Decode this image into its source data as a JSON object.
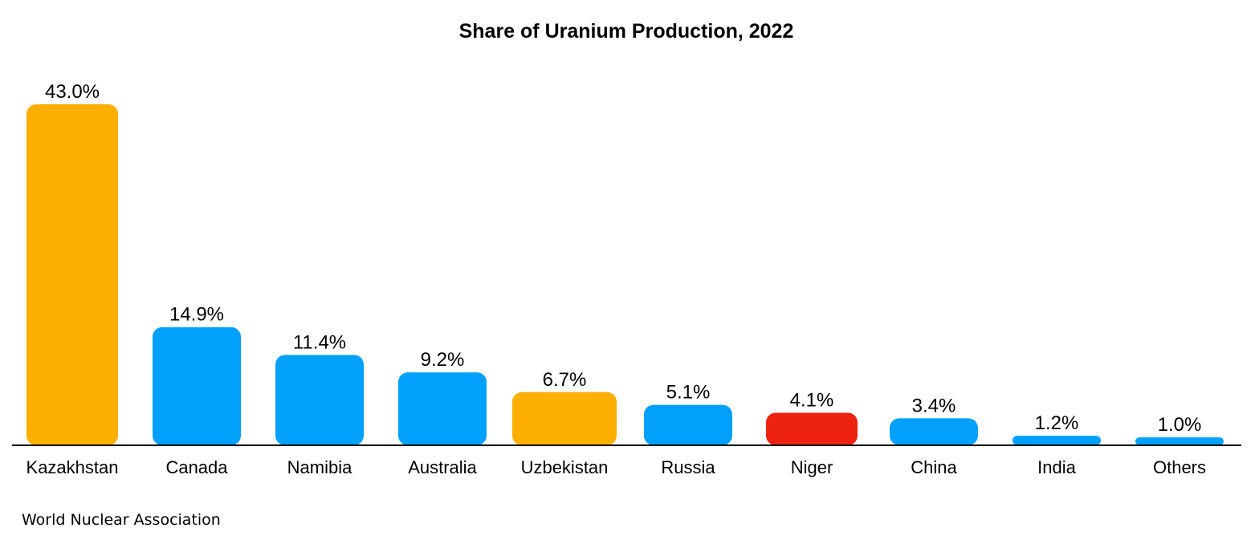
{
  "chart_data": {
    "type": "bar",
    "title": "Share of Uranium Production, 2022",
    "xlabel": "",
    "ylabel": "",
    "ylim": [
      0,
      43.0
    ],
    "grid": false,
    "legend": "none",
    "categories": [
      "Kazakhstan",
      "Canada",
      "Namibia",
      "Australia",
      "Uzbekistan",
      "Russia",
      "Niger",
      "China",
      "India",
      "Others"
    ],
    "values": [
      43.0,
      14.9,
      11.4,
      9.2,
      6.7,
      5.1,
      4.1,
      3.4,
      1.2,
      1.0
    ],
    "value_labels": [
      "43.0%",
      "14.9%",
      "11.4%",
      "9.2%",
      "6.7%",
      "5.1%",
      "4.1%",
      "3.4%",
      "1.2%",
      "1.0%"
    ],
    "bar_colors": [
      "#FDAF00",
      "#00A0FB",
      "#00A0FB",
      "#00A0FB",
      "#FDAF00",
      "#00A0FB",
      "#EE2211",
      "#00A0FB",
      "#00A0FB",
      "#00A0FB"
    ],
    "source": "World Nuclear Association"
  }
}
